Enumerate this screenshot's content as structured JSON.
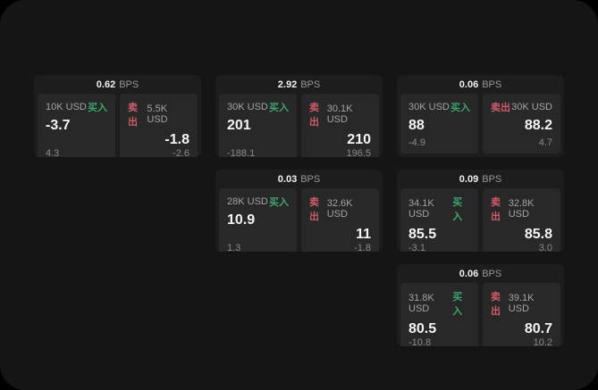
{
  "labels": {
    "bps_suffix": "BPS",
    "buy": "买入",
    "sell": "卖出"
  },
  "colors": {
    "buy": "#3da56f",
    "sell": "#cf5a6a"
  },
  "cards": [
    {
      "row": 1,
      "col": 1,
      "bps": "0.62",
      "buy": {
        "amount": "10K USD",
        "value": "-3.7",
        "sub": "4.3"
      },
      "sell": {
        "amount": "5.5K USD",
        "value": "-1.8",
        "sub": "-2.6"
      }
    },
    {
      "row": 1,
      "col": 2,
      "bps": "2.92",
      "buy": {
        "amount": "30K USD",
        "value": "201",
        "sub": "-188.1"
      },
      "sell": {
        "amount": "30.1K USD",
        "value": "210",
        "sub": "196.5"
      }
    },
    {
      "row": 1,
      "col": 3,
      "bps": "0.06",
      "buy": {
        "amount": "30K USD",
        "value": "88",
        "sub": "-4.9"
      },
      "sell": {
        "amount": "30K USD",
        "value": "88.2",
        "sub": "4.7"
      }
    },
    {
      "row": 2,
      "col": 2,
      "bps": "0.03",
      "buy": {
        "amount": "28K USD",
        "value": "10.9",
        "sub": "1.3"
      },
      "sell": {
        "amount": "32.6K USD",
        "value": "11",
        "sub": "-1.8"
      }
    },
    {
      "row": 2,
      "col": 3,
      "bps": "0.09",
      "buy": {
        "amount": "34.1K USD",
        "value": "85.5",
        "sub": "-3.1"
      },
      "sell": {
        "amount": "32.8K USD",
        "value": "85.8",
        "sub": "3.0"
      }
    },
    {
      "row": 3,
      "col": 3,
      "bps": "0.06",
      "buy": {
        "amount": "31.8K USD",
        "value": "80.5",
        "sub": "-10.8"
      },
      "sell": {
        "amount": "39.1K USD",
        "value": "80.7",
        "sub": "10.2"
      }
    }
  ]
}
